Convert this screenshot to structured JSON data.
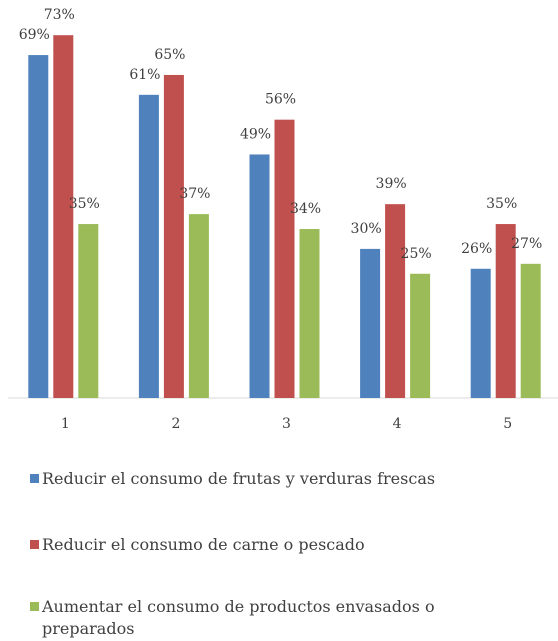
{
  "chart_data": {
    "type": "bar",
    "categories": [
      "1",
      "2",
      "3",
      "4",
      "5"
    ],
    "series": [
      {
        "name": "Reducir el consumo de frutas y verduras frescas",
        "color": "#4f81bd",
        "values": [
          69,
          61,
          49,
          30,
          26
        ],
        "value_labels": [
          "69%",
          "61%",
          "49%",
          "30%",
          "26%"
        ]
      },
      {
        "name": "Reducir el consumo de carne o pescado",
        "color": "#c0504d",
        "values": [
          73,
          65,
          56,
          39,
          35
        ],
        "value_labels": [
          "73%",
          "65%",
          "56%",
          "39%",
          "35%"
        ]
      },
      {
        "name": "Aumentar el consumo de productos envasados o preparados",
        "color": "#9bbb59",
        "values": [
          35,
          37,
          34,
          25,
          27
        ],
        "value_labels": [
          "35%",
          "37%",
          "34%",
          "25%",
          "27%"
        ]
      }
    ]
  }
}
